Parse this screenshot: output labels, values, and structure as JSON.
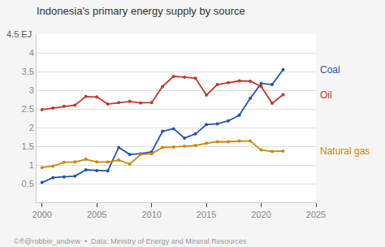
{
  "chart_data": {
    "type": "line",
    "title": "Indonesia's primary energy supply by source",
    "ylabel": "4.5 EJ",
    "annotations": [
      {
        "text": "©®@robbie_andrew  •  Data: Ministry of Energy and Mineral Resources"
      }
    ],
    "x": [
      2000,
      2001,
      2002,
      2003,
      2004,
      2005,
      2006,
      2007,
      2008,
      2009,
      2010,
      2011,
      2012,
      2013,
      2014,
      2015,
      2016,
      2017,
      2018,
      2019,
      2020,
      2021,
      2022
    ],
    "series": [
      {
        "name": "Coal",
        "color": "#2255aa",
        "marker": "circle",
        "line_style": "solid",
        "values": [
          0.53,
          0.66,
          0.68,
          0.7,
          0.87,
          0.85,
          0.84,
          1.47,
          1.28,
          1.3,
          1.35,
          1.9,
          1.97,
          1.72,
          1.83,
          2.08,
          2.1,
          2.18,
          2.33,
          2.78,
          3.18,
          3.15,
          3.55
        ]
      },
      {
        "name": "Oil",
        "color": "#c0392b",
        "marker": "circle",
        "line_style": "solid",
        "values": [
          2.48,
          2.52,
          2.57,
          2.6,
          2.83,
          2.82,
          2.63,
          2.67,
          2.7,
          2.66,
          2.67,
          3.1,
          3.37,
          3.35,
          3.32,
          2.87,
          3.15,
          3.2,
          3.25,
          3.24,
          3.1,
          2.65,
          2.88
        ]
      },
      {
        "name": "Natural gas",
        "color": "#cc8800",
        "marker": "circle",
        "line_style": "solid",
        "values": [
          0.93,
          0.97,
          1.07,
          1.08,
          1.15,
          1.08,
          1.08,
          1.13,
          1.02,
          1.28,
          1.3,
          1.47,
          1.48,
          1.5,
          1.52,
          1.58,
          1.62,
          1.62,
          1.64,
          1.64,
          1.4,
          1.36,
          1.37
        ]
      }
    ],
    "xlim": [
      1999.5,
      2025
    ],
    "xticks": [
      2000,
      2005,
      2010,
      2015,
      2020,
      2025
    ],
    "ylim": [
      0,
      4.5
    ],
    "yticks": [
      0.5,
      1,
      1.5,
      2,
      2.5,
      3,
      3.5,
      4
    ],
    "grid": true
  }
}
